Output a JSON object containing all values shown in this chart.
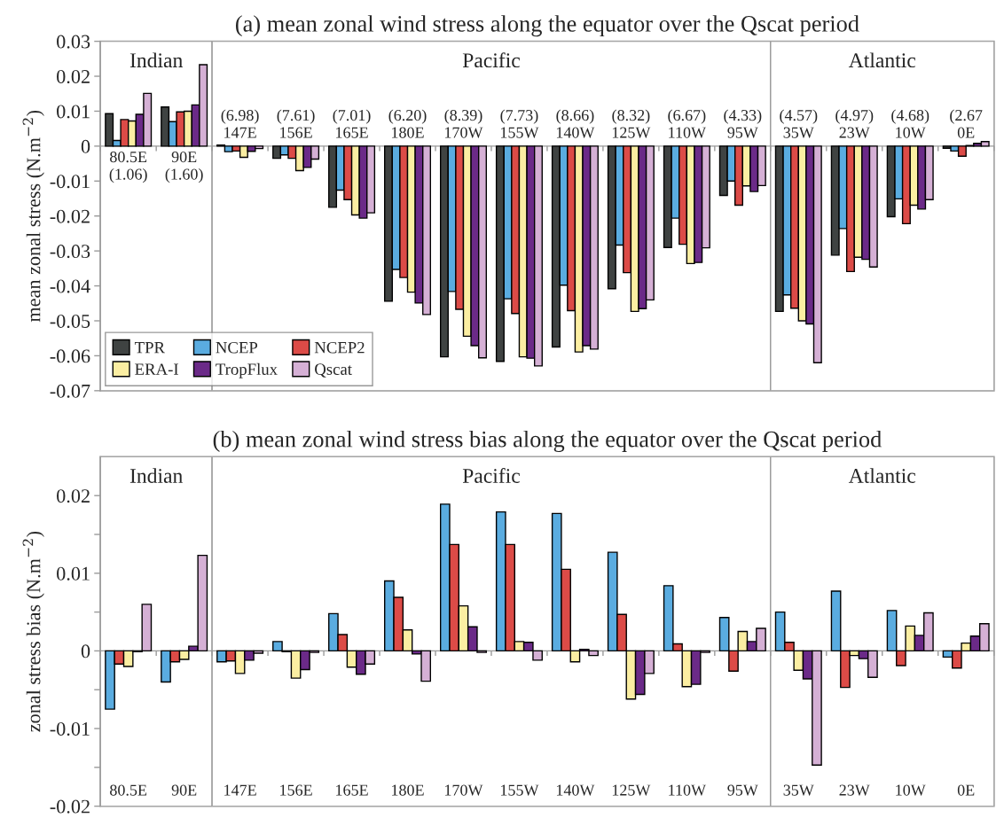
{
  "chart_data": [
    {
      "type": "bar",
      "title": "(a) mean zonal wind stress along the equator over the Qscat period",
      "ylabel": "mean zonal stress (N.m$^{−2}$)",
      "categories": [
        "80.5E\n(1.06)",
        "90E\n(1.60)",
        "(6.98)\n147E",
        "(7.61)\n156E",
        "(7.01)\n165E",
        "(6.20)\n180E",
        "(8.39)\n170W",
        "(7.73)\n155W",
        "(8.66)\n140W",
        "(8.32)\n125W",
        "(6.67)\n110W",
        "(4.33)\n95W",
        "(4.57)\n35W",
        "(4.97)\n23W",
        "(4.68)\n10W",
        "(2.67\n0E"
      ],
      "series": [
        {
          "name": "TPR",
          "color": "#3f4342",
          "values": [
            0.0093,
            0.0112,
            0.0003,
            -0.0035,
            -0.0175,
            -0.0444,
            -0.0603,
            -0.0616,
            -0.0575,
            -0.0408,
            -0.029,
            -0.0141,
            -0.0473,
            -0.0312,
            -0.0202,
            -0.0006
          ]
        },
        {
          "name": "NCEP",
          "color": "#5aace0",
          "values": [
            0.0016,
            0.007,
            -0.0016,
            -0.0025,
            -0.0126,
            -0.0353,
            -0.0416,
            -0.0437,
            -0.0398,
            -0.0283,
            -0.0206,
            -0.01,
            -0.0426,
            -0.0236,
            -0.0151,
            -0.0014
          ]
        },
        {
          "name": "NCEP2",
          "color": "#dc4b47",
          "values": [
            0.0076,
            0.0098,
            -0.0014,
            -0.0035,
            -0.0153,
            -0.0376,
            -0.0467,
            -0.0479,
            -0.0471,
            -0.0362,
            -0.0281,
            -0.0169,
            -0.0464,
            -0.0359,
            -0.0222,
            -0.0029
          ]
        },
        {
          "name": "ERA-I",
          "color": "#fbeea2",
          "values": [
            0.0072,
            0.01,
            -0.0032,
            -0.007,
            -0.0197,
            -0.0418,
            -0.0544,
            -0.0603,
            -0.0589,
            -0.0473,
            -0.0336,
            -0.0114,
            -0.05,
            -0.0318,
            -0.0169,
            0.0002
          ]
        },
        {
          "name": "TropFlux",
          "color": "#6b2a88",
          "values": [
            0.0091,
            0.0118,
            -0.0015,
            -0.0061,
            -0.0206,
            -0.0449,
            -0.0571,
            -0.0607,
            -0.0571,
            -0.0465,
            -0.0333,
            -0.013,
            -0.0509,
            -0.0324,
            -0.018,
            0.0008
          ]
        },
        {
          "name": "Qscat",
          "color": "#d5b0d5",
          "values": [
            0.0151,
            0.0233,
            -0.0007,
            -0.0037,
            -0.0191,
            -0.0482,
            -0.0606,
            -0.0629,
            -0.0581,
            -0.044,
            -0.0291,
            -0.0113,
            -0.062,
            -0.0346,
            -0.0153,
            0.0013
          ]
        }
      ],
      "ylim": [
        -0.07,
        0.03
      ],
      "yticks": [
        -0.07,
        -0.06,
        -0.05,
        -0.04,
        -0.03,
        -0.02,
        -0.01,
        0,
        0.01,
        0.02,
        0.03
      ],
      "legend": "bottom left",
      "bands": [
        {
          "axis": "x",
          "from": "80.5E\n(1.06)",
          "to": "90E\n(1.60)",
          "label": "Indian",
          "color": "#ffffff"
        },
        {
          "axis": "x",
          "from": "(6.98)\n147E",
          "to": "(4.33)\n95W",
          "label": "Pacific",
          "color": "#ffffff"
        },
        {
          "axis": "x",
          "from": "(4.57)\n35W",
          "to": "(2.67\n0E",
          "label": "Atlantic",
          "color": "#ffffff"
        }
      ]
    },
    {
      "type": "bar",
      "title": "(b) mean zonal wind stress bias along the equator over the Qscat period",
      "ylabel": "zonal stress bias (N.m$^{−2}$)",
      "categories": [
        "80.5E",
        "90E",
        "147E",
        "156E",
        "165E",
        "180E",
        "170W",
        "155W",
        "140W",
        "125W",
        "110W",
        "95W",
        "35W",
        "23W",
        "10W",
        "0E"
      ],
      "series": [
        {
          "color": "#5aace0",
          "values": [
            -0.0075,
            -0.004,
            -0.0014,
            0.0012,
            0.0048,
            0.009,
            0.0189,
            0.0179,
            0.0177,
            0.0127,
            0.0084,
            0.0043,
            0.005,
            0.0077,
            0.0052,
            -0.0008
          ]
        },
        {
          "color": "#dc4b47",
          "values": [
            -0.0017,
            -0.0014,
            -0.0013,
            -0.0001,
            0.0021,
            0.0069,
            0.0137,
            0.0137,
            0.0105,
            0.0047,
            0.0009,
            -0.0026,
            0.0011,
            -0.0047,
            -0.0019,
            -0.0022
          ]
        },
        {
          "color": "#fbeea2",
          "values": [
            -0.002,
            -0.0011,
            -0.0029,
            -0.0035,
            -0.0021,
            0.0027,
            0.0058,
            0.0012,
            -0.0014,
            -0.0062,
            -0.0046,
            0.0025,
            -0.0025,
            -0.0006,
            0.0032,
            0.001
          ]
        },
        {
          "color": "#6b2a88",
          "values": [
            -0.0001,
            0.0006,
            -0.0012,
            -0.0024,
            -0.003,
            -0.0004,
            0.0031,
            0.0011,
            0.0002,
            -0.0056,
            -0.0043,
            0.0012,
            -0.0036,
            -0.001,
            0.002,
            0.0019
          ]
        },
        {
          "color": "#d5b0d5",
          "values": [
            0.006,
            0.0123,
            -0.0003,
            -0.0002,
            -0.0017,
            -0.0039,
            -0.0002,
            -0.0012,
            -0.0006,
            -0.0029,
            -0.0002,
            0.0029,
            -0.0147,
            -0.0034,
            0.0049,
            0.0035
          ]
        }
      ],
      "ylim": [
        -0.02,
        0.025
      ],
      "yticks": [
        -0.02,
        {
          "value": -0.015,
          "label": null
        },
        -0.01,
        {
          "value": -0.005,
          "label": null
        },
        0,
        {
          "value": 0.005,
          "label": null
        },
        0.01,
        {
          "value": 0.015,
          "label": null
        },
        0.02
      ],
      "bands": [
        {
          "axis": "x",
          "from": "80.5E",
          "to": "90E",
          "label": "Indian",
          "color": "#ffffff"
        },
        {
          "axis": "x",
          "from": "147E",
          "to": "95W",
          "label": "Pacific",
          "color": "#ffffff"
        },
        {
          "axis": "x",
          "from": "35W",
          "to": "0E",
          "label": "Atlantic",
          "color": "#ffffff"
        }
      ]
    }
  ]
}
